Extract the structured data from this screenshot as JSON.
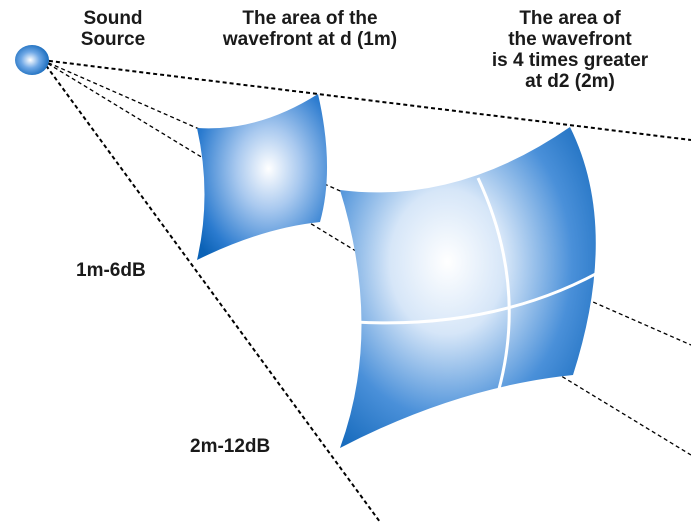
{
  "labels": {
    "source": [
      "Sound",
      "Source"
    ],
    "wavefront_d1": [
      "The area of the",
      "wavefront at d (1m)"
    ],
    "wavefront_d2": [
      "The area of",
      "the wavefront",
      "is 4 times greater",
      "at d2 (2m)"
    ],
    "level_1m": "1m-6dB",
    "level_2m": "2m-12dB"
  },
  "colors": {
    "surface_dark": "#0b62b6",
    "surface_mid": "#4a90d9",
    "surface_light": "#ffffff",
    "lines": "#000000",
    "grid": "#ffffff"
  }
}
